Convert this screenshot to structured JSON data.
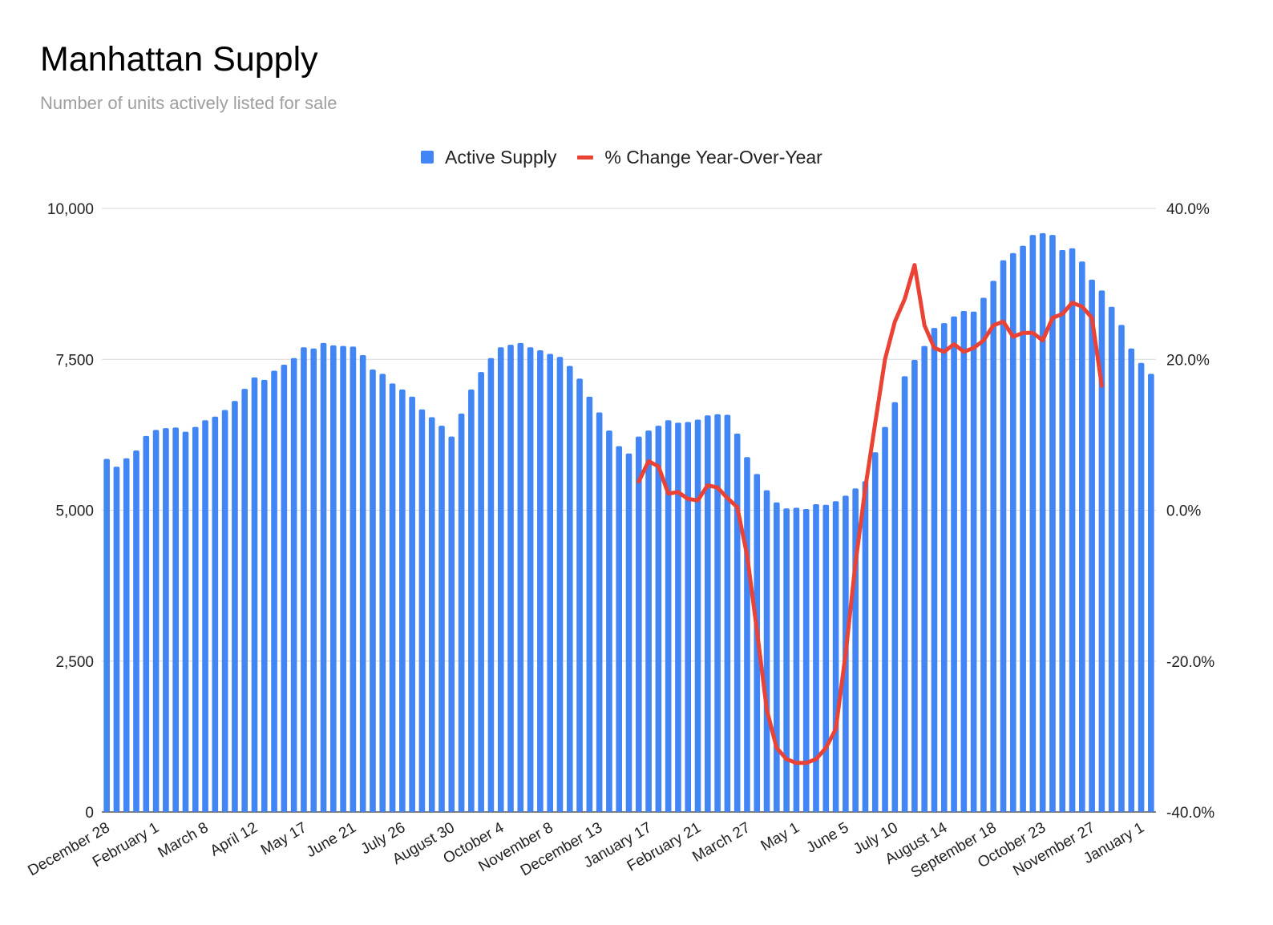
{
  "title": "Manhattan Supply",
  "subtitle": "Number of units actively listed for sale",
  "legend": [
    {
      "label": "Active Supply",
      "color": "#4285f4"
    },
    {
      "label": "% Change Year-Over-Year",
      "color": "#ea4335"
    }
  ],
  "chart_data": {
    "type": "bar",
    "title": "Manhattan Supply",
    "subtitle": "Number of units actively listed for sale",
    "x_tick_labels": [
      "December 28",
      "February 1",
      "March 8",
      "April 12",
      "May 17",
      "June 21",
      "July 26",
      "August 30",
      "October 4",
      "November 8",
      "December 13",
      "January 17",
      "February 21",
      "March 27",
      "May 1",
      "June 5",
      "July 10",
      "August 14",
      "September 18",
      "October 23",
      "November 27",
      "January 1"
    ],
    "y_left": {
      "ticks": [
        "0",
        "2,500",
        "5,000",
        "7,500",
        "10,000"
      ],
      "range": [
        0,
        10000
      ]
    },
    "y_right": {
      "ticks": [
        "-40.0%",
        "-20.0%",
        "0.0%",
        "20.0%",
        "40.0%"
      ],
      "range": [
        -40,
        40
      ]
    },
    "grid": true,
    "legend_position": "top-center",
    "series": [
      {
        "name": "Active Supply",
        "type": "bar",
        "axis": "left",
        "color": "#4285f4",
        "values": [
          5850,
          5720,
          5860,
          5990,
          6230,
          6330,
          6360,
          6370,
          6300,
          6380,
          6490,
          6550,
          6660,
          6810,
          7010,
          7200,
          7160,
          7310,
          7410,
          7520,
          7700,
          7680,
          7770,
          7730,
          7720,
          7710,
          7570,
          7330,
          7260,
          7100,
          7000,
          6880,
          6670,
          6540,
          6400,
          6220,
          6600,
          7000,
          7290,
          7520,
          7700,
          7740,
          7770,
          7700,
          7650,
          7590,
          7540,
          7390,
          7180,
          6880,
          6620,
          6320,
          6060,
          5940,
          6220,
          6320,
          6400,
          6490,
          6450,
          6460,
          6500,
          6570,
          6590,
          6580,
          6270,
          5880,
          5600,
          5330,
          5130,
          5030,
          5040,
          5020,
          5100,
          5090,
          5150,
          5240,
          5360,
          5480,
          5960,
          6380,
          6790,
          7220,
          7490,
          7720,
          8020,
          8100,
          8210,
          8300,
          8290,
          8520,
          8800,
          9140,
          9260,
          9380,
          9560,
          9590,
          9560,
          9310,
          9340,
          9120,
          8820,
          8640,
          8370,
          8070,
          7680,
          7440,
          7260
        ]
      },
      {
        "name": "% Change Year-Over-Year",
        "type": "line",
        "axis": "right",
        "color": "#ea4335",
        "start_index": 54,
        "values": [
          3.8,
          6.5,
          5.8,
          2.2,
          2.4,
          1.5,
          1.3,
          3.3,
          3.0,
          1.6,
          0.4,
          -6.0,
          -16.0,
          -26.5,
          -31.5,
          -33.0,
          -33.5,
          -33.5,
          -33.0,
          -31.5,
          -29.0,
          -19.0,
          -7.0,
          3.0,
          11.5,
          20.0,
          25.0,
          28.0,
          32.5,
          24.5,
          21.5,
          21.0,
          22.0,
          21.0,
          21.5,
          22.5,
          24.5,
          25.0,
          23.0,
          23.5,
          23.5,
          22.5,
          25.5,
          26.0,
          27.5,
          27.0,
          25.5,
          16.5
        ]
      }
    ]
  }
}
